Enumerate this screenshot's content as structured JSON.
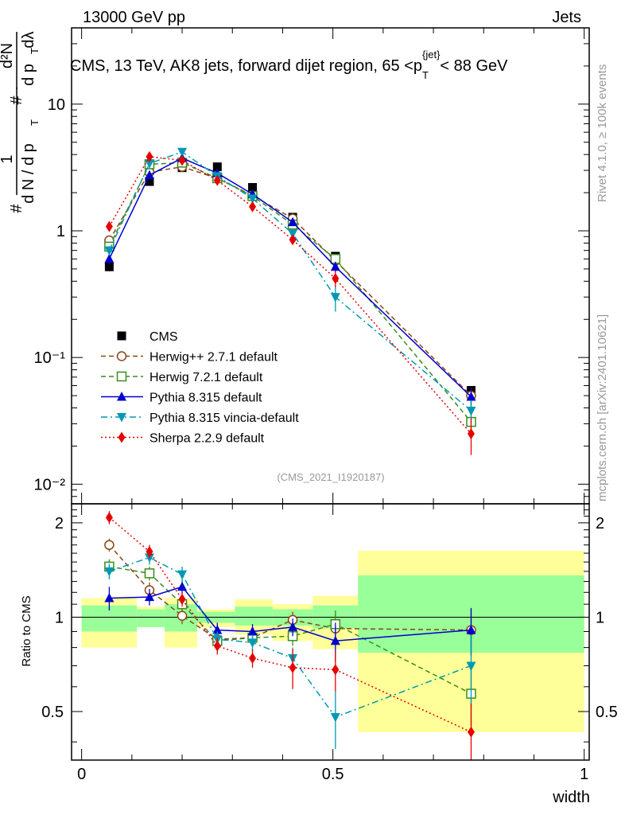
{
  "header": {
    "beam": "13000 GeV pp",
    "category": "Jets",
    "title": "CMS, 13 TeV, AK8 jets, forward dijet region, 65 <p",
    "title_sub": "T",
    "title_sup": "{jet}",
    "title_tail": "< 88 GeV",
    "rivet_label": "Rivet 4.1.0, ≥ 100k events",
    "mcplots_label": "mcplots.cern.ch [arXiv:2401.10621]",
    "analysis_id": "(CMS_2021_I1920187)"
  },
  "chart_data": [
    {
      "type": "line",
      "panel": "main",
      "ylabel": "1/(dN/dpT) d2N/(dpT dλ)",
      "yscale": "log",
      "ylim": [
        0.007,
        40
      ],
      "xlim": [
        -0.02,
        1.01
      ],
      "y_ticks": [
        {
          "value": 0.01,
          "label": "10⁻²"
        },
        {
          "value": 0.1,
          "label": "10⁻¹"
        },
        {
          "value": 1,
          "label": "1"
        },
        {
          "value": 10,
          "label": "10"
        }
      ],
      "ylabel_parts": {
        "hash": "#",
        "one": "1",
        "dN": "d N / d p",
        "T": "T",
        "d2N": "d²N",
        "dp": "d p",
        "dl": "dλ"
      },
      "x": [
        0.055,
        0.135,
        0.2,
        0.27,
        0.34,
        0.42,
        0.505,
        0.775
      ],
      "series": [
        {
          "name": "CMS",
          "color": "#000000",
          "marker": "square-filled",
          "style": "none",
          "values": [
            0.52,
            2.45,
            3.15,
            3.2,
            2.2,
            1.28,
            0.63,
            0.055
          ],
          "errors": [
            0.04,
            0.1,
            0.1,
            0.1,
            0.08,
            0.05,
            0.04,
            0.004
          ]
        },
        {
          "name": "Herwig++ 2.7.1 default",
          "color": "#8b4513",
          "marker": "circle-open",
          "style": "dashed",
          "values": [
            0.84,
            2.9,
            3.2,
            2.6,
            1.9,
            1.25,
            0.58,
            0.05
          ],
          "errors": [
            0.05,
            0.12,
            0.12,
            0.1,
            0.08,
            0.06,
            0.05,
            0.008
          ]
        },
        {
          "name": "Herwig 7.2.1 default",
          "color": "#3a8c1c",
          "marker": "square-open",
          "style": "dashed",
          "values": [
            0.75,
            3.35,
            3.45,
            2.6,
            1.88,
            1.12,
            0.6,
            0.031
          ],
          "errors": [
            0.05,
            0.12,
            0.12,
            0.1,
            0.08,
            0.06,
            0.05,
            0.006
          ]
        },
        {
          "name": "Pythia 8.315 default",
          "color": "#0000cc",
          "marker": "triangle-up",
          "style": "solid",
          "values": [
            0.6,
            2.75,
            3.75,
            2.85,
            1.95,
            1.17,
            0.52,
            0.049
          ],
          "errors": [
            0.05,
            0.12,
            0.12,
            0.1,
            0.08,
            0.06,
            0.05,
            0.009
          ]
        },
        {
          "name": "Pythia 8.315 vincia-default",
          "color": "#0099b3",
          "marker": "triangle-down",
          "style": "dashdot",
          "values": [
            0.7,
            3.4,
            4.2,
            2.7,
            1.8,
            0.95,
            0.3,
            0.038
          ],
          "errors": [
            0.05,
            0.12,
            0.15,
            0.1,
            0.08,
            0.06,
            0.07,
            0.008
          ]
        },
        {
          "name": "Sherpa 2.2.9 default",
          "color": "#e60000",
          "marker": "diamond",
          "style": "dotted",
          "values": [
            1.08,
            3.85,
            3.6,
            2.5,
            1.55,
            0.85,
            0.42,
            0.025
          ],
          "errors": [
            0.06,
            0.12,
            0.12,
            0.1,
            0.08,
            0.07,
            0.06,
            0.008
          ]
        }
      ]
    },
    {
      "type": "line",
      "panel": "ratio",
      "ylabel": "Ratio to CMS",
      "xlabel": "width",
      "ylim": [
        0.35,
        2.3
      ],
      "xlim": [
        -0.02,
        1.01
      ],
      "y_ticks": [
        {
          "value": 0.5,
          "label": "0.5"
        },
        {
          "value": 1,
          "label": "1"
        },
        {
          "value": 2,
          "label": "2"
        }
      ],
      "x_ticks": [
        {
          "value": 0,
          "label": "0"
        },
        {
          "value": 0.5,
          "label": "0.5"
        },
        {
          "value": 1,
          "label": "1"
        }
      ],
      "bands": [
        {
          "x0": 0.0,
          "x1": 0.11,
          "stat": [
            0.9,
            1.09
          ],
          "total": [
            0.8,
            1.15
          ]
        },
        {
          "x0": 0.11,
          "x1": 0.165,
          "stat": [
            0.93,
            1.06
          ],
          "total": [
            0.93,
            1.08
          ]
        },
        {
          "x0": 0.165,
          "x1": 0.23,
          "stat": [
            0.9,
            1.1
          ],
          "total": [
            0.8,
            1.15
          ]
        },
        {
          "x0": 0.23,
          "x1": 0.305,
          "stat": [
            0.96,
            1.04
          ],
          "total": [
            0.93,
            1.06
          ]
        },
        {
          "x0": 0.305,
          "x1": 0.38,
          "stat": [
            0.94,
            1.08
          ],
          "total": [
            0.88,
            1.14
          ]
        },
        {
          "x0": 0.38,
          "x1": 0.46,
          "stat": [
            0.94,
            1.06
          ],
          "total": [
            0.84,
            1.1
          ]
        },
        {
          "x0": 0.46,
          "x1": 0.55,
          "stat": [
            0.92,
            1.09
          ],
          "total": [
            0.79,
            1.17
          ]
        },
        {
          "x0": 0.55,
          "x1": 1.0,
          "stat": [
            0.77,
            1.36
          ],
          "total": [
            0.43,
            1.63
          ]
        }
      ],
      "x": [
        0.055,
        0.135,
        0.2,
        0.27,
        0.34,
        0.42,
        0.505,
        0.775
      ],
      "series": [
        {
          "name": "Herwig++ 2.7.1 default",
          "color": "#8b4513",
          "marker": "circle-open",
          "style": "dashed",
          "values": [
            1.7,
            1.22,
            1.01,
            0.85,
            0.86,
            0.98,
            0.92,
            0.91
          ],
          "errors": [
            0.08,
            0.07,
            0.06,
            0.05,
            0.05,
            0.06,
            0.1,
            0.15
          ]
        },
        {
          "name": "Herwig 7.2.1 default",
          "color": "#3a8c1c",
          "marker": "square-open",
          "style": "dashed",
          "values": [
            1.45,
            1.38,
            1.1,
            0.84,
            0.86,
            0.87,
            0.95,
            0.57
          ],
          "errors": [
            0.08,
            0.07,
            0.06,
            0.05,
            0.05,
            0.06,
            0.1,
            0.12
          ]
        },
        {
          "name": "Pythia 8.315 default",
          "color": "#0000cc",
          "marker": "triangle-up",
          "style": "solid",
          "values": [
            1.15,
            1.16,
            1.25,
            0.91,
            0.9,
            0.93,
            0.84,
            0.91
          ],
          "errors": [
            0.1,
            0.07,
            0.06,
            0.05,
            0.05,
            0.06,
            0.12,
            0.16
          ]
        },
        {
          "name": "Pythia 8.315 vincia-default",
          "color": "#0099b3",
          "marker": "triangle-down",
          "style": "dashdot",
          "values": [
            1.4,
            1.55,
            1.37,
            0.85,
            0.83,
            0.74,
            0.48,
            0.7
          ],
          "errors": [
            0.08,
            0.08,
            0.08,
            0.05,
            0.05,
            0.06,
            0.1,
            0.18
          ]
        },
        {
          "name": "Sherpa 2.2.9 default",
          "color": "#e60000",
          "marker": "diamond",
          "style": "dotted",
          "values": [
            2.08,
            1.62,
            1.14,
            0.81,
            0.74,
            0.69,
            0.68,
            0.43
          ],
          "errors": [
            0.1,
            0.08,
            0.06,
            0.05,
            0.05,
            0.1,
            0.1,
            0.1
          ]
        }
      ]
    }
  ]
}
